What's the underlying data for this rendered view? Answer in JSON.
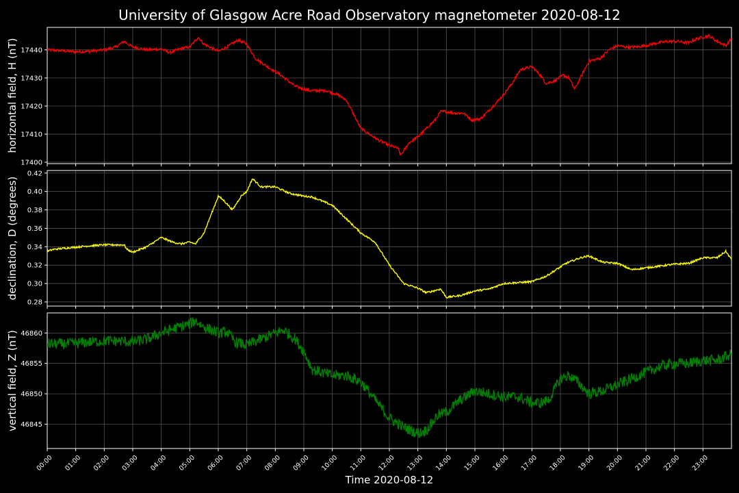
{
  "chart_data": {
    "type": "line",
    "title": "University of Glasgow Acre Road Observatory magnetometer 2020-08-12",
    "xlabel": "Time 2020-08-12",
    "x_ticks": [
      "00:00",
      "01:00",
      "02:00",
      "03:00",
      "04:00",
      "05:00",
      "06:00",
      "07:00",
      "08:00",
      "09:00",
      "10:00",
      "11:00",
      "12:00",
      "13:00",
      "14:00",
      "15:00",
      "16:00",
      "17:00",
      "18:00",
      "19:00",
      "20:00",
      "21:00",
      "22:00",
      "23:00"
    ],
    "x_range_hours": [
      0,
      24
    ],
    "grid": true,
    "panels": [
      {
        "ylabel": "horizontal field, H (nT)",
        "color": "#ff0000",
        "ylim": [
          17399.5,
          17448
        ],
        "yticks": [
          17400,
          17410,
          17420,
          17430,
          17440
        ],
        "ytick_labels": [
          "17400",
          "17410",
          "17420",
          "17430",
          "17440"
        ],
        "noise": 0.5,
        "x": [
          0,
          0.5,
          1.0,
          1.5,
          2.0,
          2.4,
          2.7,
          3.0,
          3.5,
          4.0,
          4.3,
          4.7,
          5.0,
          5.3,
          5.5,
          6.0,
          6.3,
          6.7,
          7.0,
          7.3,
          7.8,
          8.2,
          8.7,
          9.2,
          9.8,
          10.2,
          10.5,
          11.0,
          11.3,
          11.6,
          12.0,
          12.3,
          12.4,
          12.7,
          13.0,
          13.3,
          13.6,
          13.8,
          14.0,
          14.3,
          14.6,
          14.9,
          15.2,
          15.6,
          16.0,
          16.3,
          16.6,
          17.0,
          17.3,
          17.5,
          17.8,
          18.1,
          18.3,
          18.5,
          18.8,
          19.0,
          19.4,
          19.7,
          20.0,
          20.3,
          20.6,
          21.0,
          21.4,
          21.8,
          22.1,
          22.5,
          22.8,
          23.2,
          23.5,
          23.8,
          24.0
        ],
        "values": [
          17440,
          17439.7,
          17439.3,
          17439.5,
          17440,
          17441,
          17443,
          17441,
          17440,
          17440.3,
          17439,
          17440.5,
          17441,
          17444.5,
          17442,
          17439.5,
          17441,
          17443.5,
          17442,
          17437,
          17433.5,
          17431,
          17427,
          17425.5,
          17425.5,
          17424,
          17422,
          17412,
          17410,
          17408,
          17406,
          17405,
          17402.5,
          17407,
          17409,
          17412,
          17415,
          17418,
          17418,
          17417.5,
          17417.5,
          17415,
          17415.5,
          17419.5,
          17424,
          17428,
          17433,
          17434,
          17431,
          17428,
          17429,
          17431,
          17430,
          17426,
          17432,
          17436,
          17437,
          17440,
          17441.5,
          17441,
          17441,
          17441.5,
          17442.5,
          17443,
          17443,
          17442.5,
          17444,
          17445,
          17443,
          17441.5,
          17444
        ]
      },
      {
        "ylabel": "declination, D (degrees)",
        "color": "#ffff00",
        "ylim": [
          0.2755,
          0.4228
        ],
        "yticks": [
          0.28,
          0.3,
          0.32,
          0.34,
          0.36,
          0.38,
          0.4,
          0.42
        ],
        "ytick_labels": [
          "0.28",
          "0.30",
          "0.32",
          "0.34",
          "0.36",
          "0.38",
          "0.40",
          "0.42"
        ],
        "noise": 0.001,
        "x": [
          0,
          0.2,
          0.8,
          1.5,
          2.0,
          2.7,
          2.8,
          3.0,
          3.5,
          4.0,
          4.4,
          4.7,
          5.0,
          5.2,
          5.5,
          6.0,
          6.2,
          6.5,
          6.8,
          7.0,
          7.2,
          7.5,
          8.0,
          8.5,
          9.0,
          9.3,
          10.0,
          10.5,
          11.0,
          11.5,
          12.0,
          12.5,
          13.0,
          13.3,
          13.8,
          14.0,
          14.5,
          15.0,
          15.5,
          16.0,
          16.5,
          17.0,
          17.5,
          17.8,
          18.2,
          18.7,
          19.0,
          19.5,
          20.0,
          20.5,
          21.0,
          21.5,
          22.0,
          22.5,
          23.0,
          23.5,
          23.8,
          24.0
        ],
        "values": [
          0.335,
          0.337,
          0.339,
          0.341,
          0.342,
          0.342,
          0.337,
          0.334,
          0.34,
          0.35,
          0.345,
          0.343,
          0.345,
          0.343,
          0.355,
          0.395,
          0.39,
          0.38,
          0.395,
          0.4,
          0.414,
          0.405,
          0.405,
          0.398,
          0.395,
          0.394,
          0.385,
          0.37,
          0.355,
          0.345,
          0.32,
          0.3,
          0.295,
          0.29,
          0.294,
          0.285,
          0.287,
          0.292,
          0.294,
          0.3,
          0.301,
          0.302,
          0.308,
          0.314,
          0.322,
          0.328,
          0.33,
          0.323,
          0.322,
          0.315,
          0.317,
          0.319,
          0.321,
          0.322,
          0.328,
          0.328,
          0.335,
          0.326
        ]
      },
      {
        "ylabel": "vertical field, Z (nT)",
        "color": "#008000",
        "ylim": [
          46841,
          46863.3
        ],
        "yticks": [
          46845,
          46850,
          46855,
          46860
        ],
        "ytick_labels": [
          "46845",
          "46850",
          "46855",
          "46860"
        ],
        "noise": 0.9,
        "x": [
          0,
          0.5,
          1.0,
          1.5,
          2.0,
          2.5,
          3.0,
          3.5,
          4.0,
          4.5,
          5.0,
          5.2,
          5.5,
          6.0,
          6.3,
          6.6,
          7.0,
          7.5,
          8.0,
          8.3,
          8.7,
          9.0,
          9.3,
          10.0,
          10.5,
          11.0,
          11.5,
          12.0,
          12.5,
          13.0,
          13.3,
          13.7,
          14.0,
          14.5,
          15.0,
          15.5,
          16.0,
          16.5,
          17.0,
          17.3,
          17.6,
          18.0,
          18.3,
          18.6,
          19.0,
          19.5,
          20.0,
          20.5,
          21.0,
          21.5,
          22.0,
          22.5,
          23.0,
          23.5,
          24.0
        ],
        "values": [
          46858.2,
          46858.2,
          46858.3,
          46858.5,
          46858.7,
          46858.7,
          46858.5,
          46859,
          46860,
          46860.8,
          46861.5,
          46862,
          46861,
          46860,
          46860.2,
          46858.5,
          46858,
          46859,
          46860,
          46860.5,
          46859,
          46857,
          46854,
          46853,
          46853,
          46852,
          46849,
          46846,
          46844.5,
          46843.5,
          46844,
          46846.5,
          46847,
          46849,
          46850.5,
          46850,
          46849.5,
          46849.5,
          46848.5,
          46848.5,
          46849,
          46852.5,
          46853,
          46852,
          46850,
          46850.5,
          46851.5,
          46852.5,
          46853.5,
          46854.5,
          46855,
          46855,
          46855.5,
          46855.5,
          46856.5
        ]
      }
    ]
  }
}
